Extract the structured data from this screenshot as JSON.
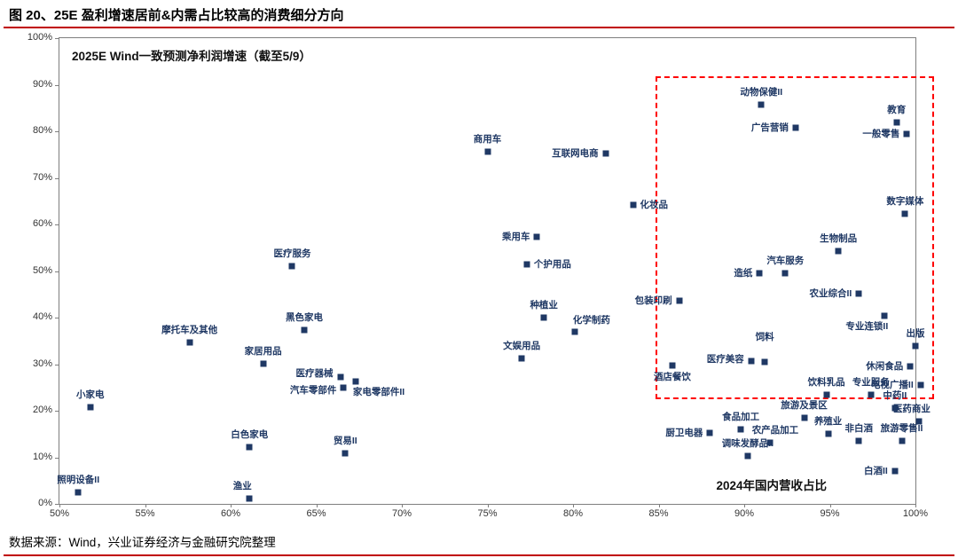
{
  "header": {
    "title": "图 20、25E 盈利增速居前&内需占比较高的消费细分方向"
  },
  "footer": {
    "source": "数据来源：Wind，兴业证券经济与金融研究院整理"
  },
  "chart_data": {
    "type": "scatter",
    "title_annotation": "2025E Wind一致预测净利润增速（截至5/9）",
    "xlabel_annotation": "2024年国内营收占比",
    "xlim": [
      50,
      100
    ],
    "ylim": [
      0,
      100
    ],
    "grid": false,
    "marker_color": "#1F3864",
    "label_color": "#1F3864",
    "x_ticks": [
      {
        "value": 50,
        "label": "50%"
      },
      {
        "value": 55,
        "label": "55%"
      },
      {
        "value": 60,
        "label": "60%"
      },
      {
        "value": 65,
        "label": "65%"
      },
      {
        "value": 70,
        "label": "70%"
      },
      {
        "value": 75,
        "label": "75%"
      },
      {
        "value": 80,
        "label": "80%"
      },
      {
        "value": 85,
        "label": "85%"
      },
      {
        "value": 90,
        "label": "90%"
      },
      {
        "value": 95,
        "label": "95%"
      },
      {
        "value": 100,
        "label": "100%"
      }
    ],
    "y_ticks": [
      {
        "value": 0,
        "label": "0%"
      },
      {
        "value": 10,
        "label": "10%"
      },
      {
        "value": 20,
        "label": "20%"
      },
      {
        "value": 30,
        "label": "30%"
      },
      {
        "value": 40,
        "label": "40%"
      },
      {
        "value": 50,
        "label": "50%"
      },
      {
        "value": 60,
        "label": "60%"
      },
      {
        "value": 70,
        "label": "70%"
      },
      {
        "value": 80,
        "label": "80%"
      },
      {
        "value": 90,
        "label": "90%"
      },
      {
        "value": 100,
        "label": "100%"
      }
    ],
    "highlight_box": {
      "x_min": 84.8,
      "x_max": 100.9,
      "y_min": 23.3,
      "y_max": 91.8,
      "color": "#FF0000"
    },
    "points": [
      {
        "label": "照明设备II",
        "x": 51.1,
        "y": 2.5,
        "pos": "above"
      },
      {
        "label": "小家电",
        "x": 51.8,
        "y": 20.8,
        "pos": "above"
      },
      {
        "label": "摩托车及其他",
        "x": 57.6,
        "y": 34.7,
        "pos": "above"
      },
      {
        "label": "白色家电",
        "x": 61.1,
        "y": 12.2,
        "pos": "above"
      },
      {
        "label": "渔业",
        "x": 61.1,
        "y": 1.1,
        "pos": "above",
        "dx": -8
      },
      {
        "label": "家居用品",
        "x": 61.9,
        "y": 30.1,
        "pos": "above"
      },
      {
        "label": "医疗服务",
        "x": 63.6,
        "y": 51.0,
        "pos": "above"
      },
      {
        "label": "黑色家电",
        "x": 64.3,
        "y": 37.3,
        "pos": "above"
      },
      {
        "label": "医疗器械",
        "x": 66.4,
        "y": 27.3,
        "pos": "left",
        "dy": -4
      },
      {
        "label": "汽车零部件",
        "x": 66.6,
        "y": 25.0,
        "pos": "left",
        "dy": 3
      },
      {
        "label": "家电零部件II",
        "x": 67.3,
        "y": 26.3,
        "pos": "below-right"
      },
      {
        "label": "贸易II",
        "x": 66.7,
        "y": 10.9,
        "pos": "above"
      },
      {
        "label": "商用车",
        "x": 75.0,
        "y": 75.6,
        "pos": "above"
      },
      {
        "label": "互联网电商",
        "x": 81.9,
        "y": 75.2,
        "pos": "left"
      },
      {
        "label": "乘用车",
        "x": 77.9,
        "y": 57.3,
        "pos": "left"
      },
      {
        "label": "个护用品",
        "x": 77.3,
        "y": 51.4,
        "pos": "right"
      },
      {
        "label": "种植业",
        "x": 78.3,
        "y": 40.0,
        "pos": "above"
      },
      {
        "label": "化学制药",
        "x": 80.1,
        "y": 37.0,
        "pos": "above-right"
      },
      {
        "label": "文娱用品",
        "x": 77.0,
        "y": 31.3,
        "pos": "above"
      },
      {
        "label": "化妆品",
        "x": 83.5,
        "y": 64.2,
        "pos": "right"
      },
      {
        "label": "包装印刷",
        "x": 86.2,
        "y": 43.6,
        "pos": "left"
      },
      {
        "label": "酒店餐饮",
        "x": 85.8,
        "y": 29.7,
        "pos": "below"
      },
      {
        "label": "医疗美容",
        "x": 90.4,
        "y": 30.7,
        "pos": "left",
        "dy": -2
      },
      {
        "label": "饲料",
        "x": 91.2,
        "y": 30.4,
        "pos": "above",
        "dy": -14
      },
      {
        "label": "造纸",
        "x": 90.9,
        "y": 49.6,
        "pos": "left"
      },
      {
        "label": "汽车服务",
        "x": 92.4,
        "y": 49.6,
        "pos": "above"
      },
      {
        "label": "动物保健II",
        "x": 91.0,
        "y": 85.7,
        "pos": "above"
      },
      {
        "label": "广告营销",
        "x": 93.0,
        "y": 80.8,
        "pos": "left"
      },
      {
        "label": "教育",
        "x": 98.9,
        "y": 81.9,
        "pos": "above"
      },
      {
        "label": "一般零售",
        "x": 99.5,
        "y": 79.5,
        "pos": "left"
      },
      {
        "label": "数字媒体",
        "x": 99.4,
        "y": 62.3,
        "pos": "above"
      },
      {
        "label": "生物制品",
        "x": 95.5,
        "y": 54.2,
        "pos": "above"
      },
      {
        "label": "农业综合II",
        "x": 96.7,
        "y": 45.1,
        "pos": "left"
      },
      {
        "label": "专业连锁II",
        "x": 98.2,
        "y": 40.3,
        "pos": "below-left"
      },
      {
        "label": "出版",
        "x": 100.0,
        "y": 34.0,
        "pos": "above"
      },
      {
        "label": "休闲食品",
        "x": 99.7,
        "y": 29.5,
        "pos": "left"
      },
      {
        "label": "电视广播II",
        "x": 100.3,
        "y": 25.5,
        "pos": "left"
      },
      {
        "label": "饮料乳品",
        "x": 94.8,
        "y": 23.5,
        "pos": "above"
      },
      {
        "label": "专业服务",
        "x": 97.4,
        "y": 23.5,
        "pos": "above"
      },
      {
        "label": "中药II",
        "x": 98.8,
        "y": 20.5,
        "pos": "above"
      },
      {
        "label": "医药商业",
        "x": 100.2,
        "y": 17.8,
        "pos": "above",
        "dx": -8
      },
      {
        "label": "旅游及景区",
        "x": 93.5,
        "y": 18.5,
        "pos": "above"
      },
      {
        "label": "养殖业",
        "x": 94.9,
        "y": 15.0,
        "pos": "above"
      },
      {
        "label": "非白酒",
        "x": 96.7,
        "y": 13.5,
        "pos": "above"
      },
      {
        "label": "旅游零售II",
        "x": 99.2,
        "y": 13.5,
        "pos": "above"
      },
      {
        "label": "食品加工",
        "x": 89.8,
        "y": 16.0,
        "pos": "above"
      },
      {
        "label": "厨卫电器",
        "x": 88.0,
        "y": 15.3,
        "pos": "left"
      },
      {
        "label": "农产品加工",
        "x": 91.5,
        "y": 13.2,
        "pos": "above",
        "dx": 6
      },
      {
        "label": "调味发酵品II",
        "x": 90.2,
        "y": 10.2,
        "pos": "above"
      },
      {
        "label": "白酒II",
        "x": 98.8,
        "y": 7.0,
        "pos": "left"
      }
    ]
  }
}
